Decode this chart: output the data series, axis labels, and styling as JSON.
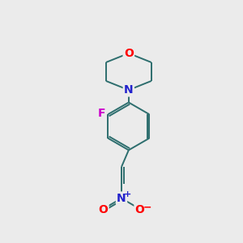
{
  "bg_color": "#ebebeb",
  "bond_color": "#2d6e6e",
  "atom_colors": {
    "O": "#ff0000",
    "N_morpholine": "#2222cc",
    "N_nitro": "#2222cc",
    "F": "#cc00cc",
    "O_nitro": "#ff0000"
  },
  "figsize": [
    3.0,
    3.0
  ],
  "dpi": 100,
  "lw": 1.4
}
